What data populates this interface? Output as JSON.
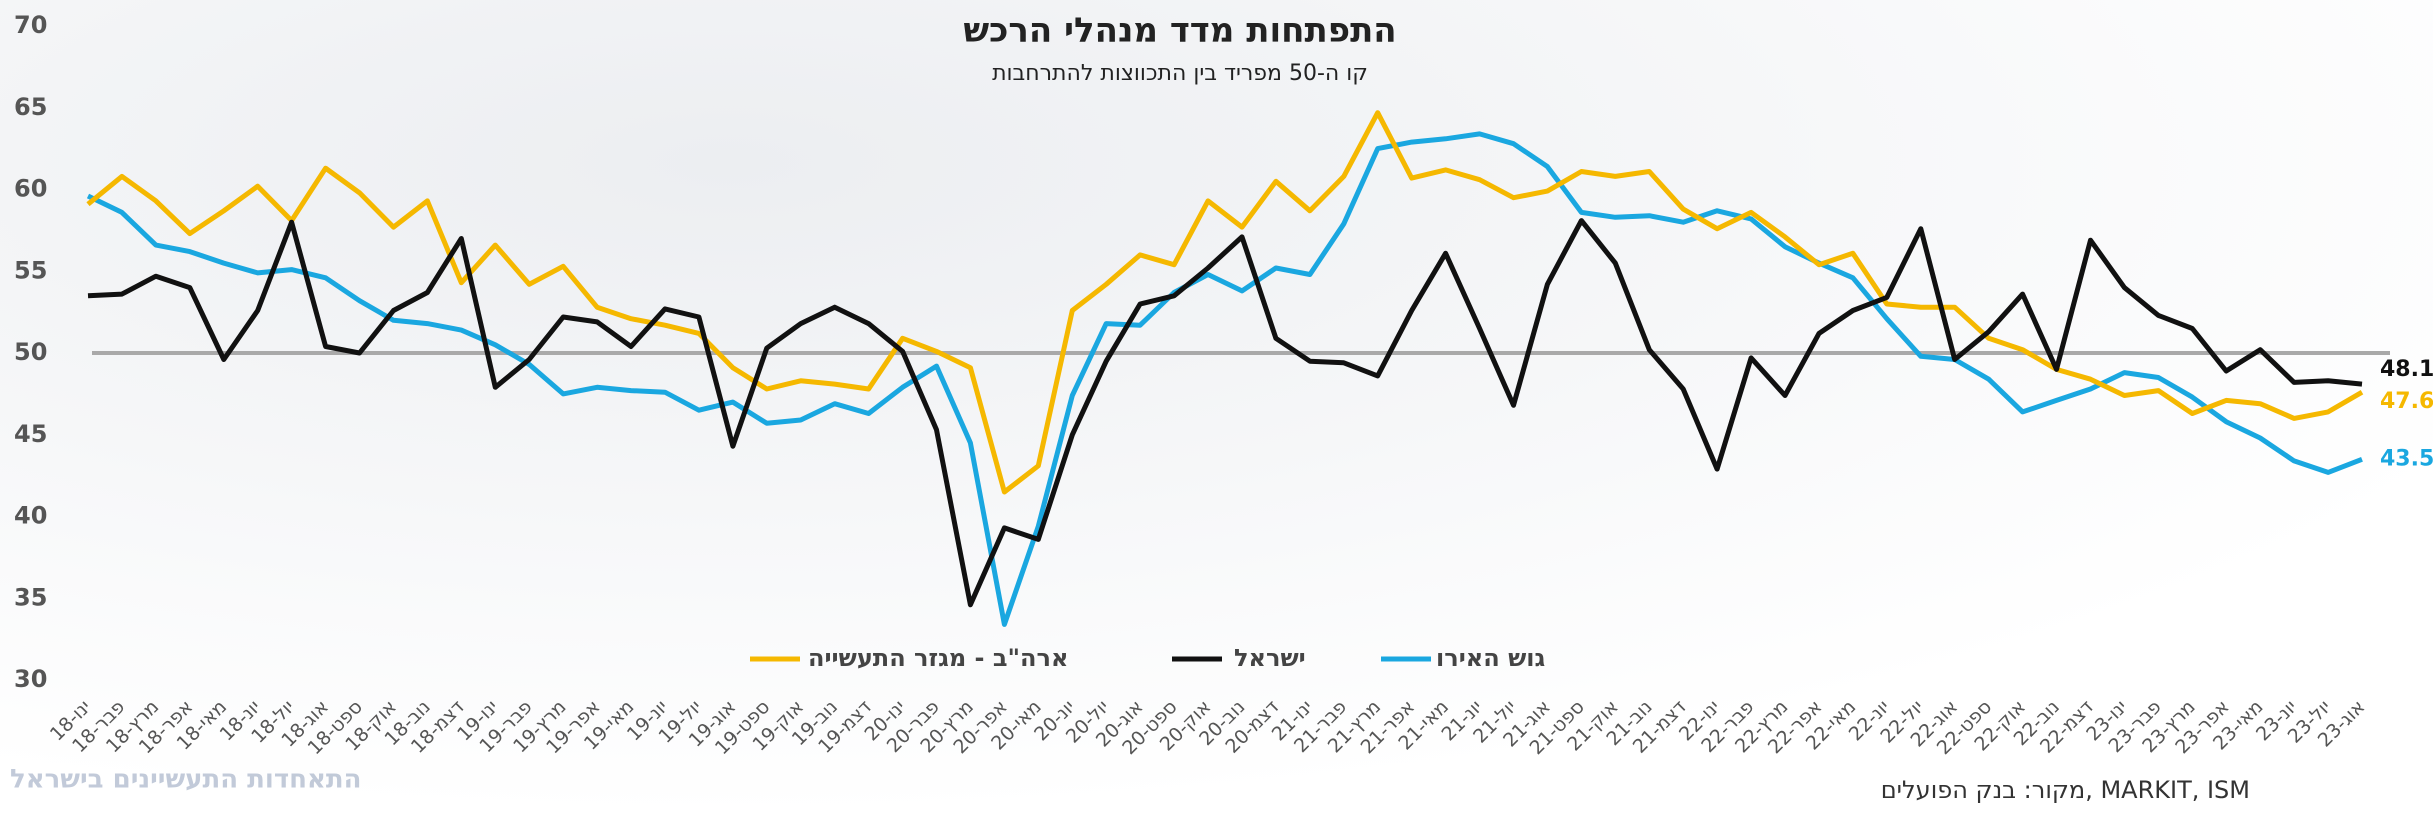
{
  "chart_data": {
    "type": "line",
    "title": "התפתחות מדד מנהלי הרכש",
    "subtitle": "קו ה-50 מפריד בין התכווצות להתרחבות",
    "source": "מקור: בנק הפועלים, MARKIT, ISM",
    "logo": "התאחדות התעשיינים בישראל",
    "ylim": [
      30,
      70
    ],
    "yticks": [
      30,
      35,
      40,
      45,
      50,
      55,
      60,
      65,
      70
    ],
    "reference_line": 50,
    "categories": [
      "ינו-18",
      "פבר-18",
      "מרץ-18",
      "אפר-18",
      "מאי-18",
      "יונ-18",
      "יול-18",
      "אוג-18",
      "ספט-18",
      "אוק-18",
      "נוב-18",
      "דצמ-18",
      "ינו-19",
      "פבר-19",
      "מרץ-19",
      "אפר-19",
      "מאי-19",
      "יונ-19",
      "יול-19",
      "אוג-19",
      "ספט-19",
      "אוק-19",
      "נוב-19",
      "דצמ-19",
      "ינו-20",
      "פבר-20",
      "מרץ-20",
      "אפר-20",
      "מאי-20",
      "יונ-20",
      "יול-20",
      "אוג-20",
      "ספט-20",
      "אוק-20",
      "נוב-20",
      "דצמ-20",
      "ינו-21",
      "פבר-21",
      "מרץ-21",
      "אפר-21",
      "מאי-21",
      "יונ-21",
      "יול-21",
      "אוג-21",
      "ספט-21",
      "אוק-21",
      "נוב-21",
      "דצמ-21",
      "ינו-22",
      "פבר-22",
      "מרץ-22",
      "אפר-22",
      "מאי-22",
      "יונ-22",
      "יול-22",
      "אוג-22",
      "ספט-22",
      "אוק-22",
      "נוב-22",
      "דצמ-22",
      "ינו-23",
      "פבר-23",
      "מרץ-23",
      "אפר-23",
      "מאי-23",
      "יונ-23",
      "יול-23",
      "אוג-23"
    ],
    "series": [
      {
        "name": "ארה\"ב - מגזר התעשייה",
        "color": "#f5b800",
        "values": [
          59.1,
          60.8,
          59.3,
          57.3,
          58.7,
          60.2,
          58.1,
          61.3,
          59.8,
          57.7,
          59.3,
          54.3,
          56.6,
          54.2,
          55.3,
          52.8,
          52.1,
          51.7,
          51.2,
          49.1,
          47.8,
          48.3,
          48.1,
          47.8,
          50.9,
          50.1,
          49.1,
          41.5,
          43.1,
          52.6,
          54.2,
          56.0,
          55.4,
          59.3,
          57.7,
          60.5,
          58.7,
          60.8,
          64.7,
          60.7,
          61.2,
          60.6,
          59.5,
          59.9,
          61.1,
          60.8,
          61.1,
          58.8,
          57.6,
          58.6,
          57.1,
          55.4,
          56.1,
          53.0,
          52.8,
          52.8,
          50.9,
          50.2,
          49.0,
          48.4,
          47.4,
          47.7,
          46.3,
          47.1,
          46.9,
          46.0,
          46.4,
          47.6
        ]
      },
      {
        "name": "ישראל",
        "color": "#111111",
        "values": [
          53.5,
          53.6,
          54.7,
          54.0,
          49.6,
          52.6,
          58.0,
          50.4,
          50.0,
          52.6,
          53.7,
          57.0,
          47.9,
          49.6,
          52.2,
          51.9,
          50.4,
          52.7,
          52.2,
          44.3,
          50.3,
          51.8,
          52.8,
          51.8,
          50.1,
          45.3,
          34.6,
          39.3,
          38.6,
          45.0,
          49.5,
          53.0,
          53.5,
          55.2,
          57.1,
          50.9,
          49.5,
          49.4,
          48.6,
          52.6,
          56.1,
          51.5,
          46.8,
          54.2,
          58.1,
          55.5,
          50.2,
          47.8,
          42.9,
          49.7,
          47.4,
          51.2,
          52.6,
          53.4,
          57.6,
          49.6,
          51.3,
          53.6,
          49.0,
          56.9,
          54.0,
          52.3,
          51.5,
          48.9,
          50.2,
          48.2,
          48.3,
          48.1
        ]
      },
      {
        "name": "גוש האירו",
        "color": "#1aa7e0",
        "values": [
          59.6,
          58.6,
          56.6,
          56.2,
          55.5,
          54.9,
          55.1,
          54.6,
          53.2,
          52.0,
          51.8,
          51.4,
          50.5,
          49.3,
          47.5,
          47.9,
          47.7,
          47.6,
          46.5,
          47.0,
          45.7,
          45.9,
          46.9,
          46.3,
          47.9,
          49.2,
          44.5,
          33.4,
          39.4,
          47.4,
          51.8,
          51.7,
          53.7,
          54.8,
          53.8,
          55.2,
          54.8,
          57.9,
          62.5,
          62.9,
          63.1,
          63.4,
          62.8,
          61.4,
          58.6,
          58.3,
          58.4,
          58.0,
          58.7,
          58.2,
          56.5,
          55.5,
          54.6,
          52.1,
          49.8,
          49.6,
          48.4,
          46.4,
          47.1,
          47.8,
          48.8,
          48.5,
          47.3,
          45.8,
          44.8,
          43.4,
          42.7,
          43.5
        ]
      }
    ]
  }
}
